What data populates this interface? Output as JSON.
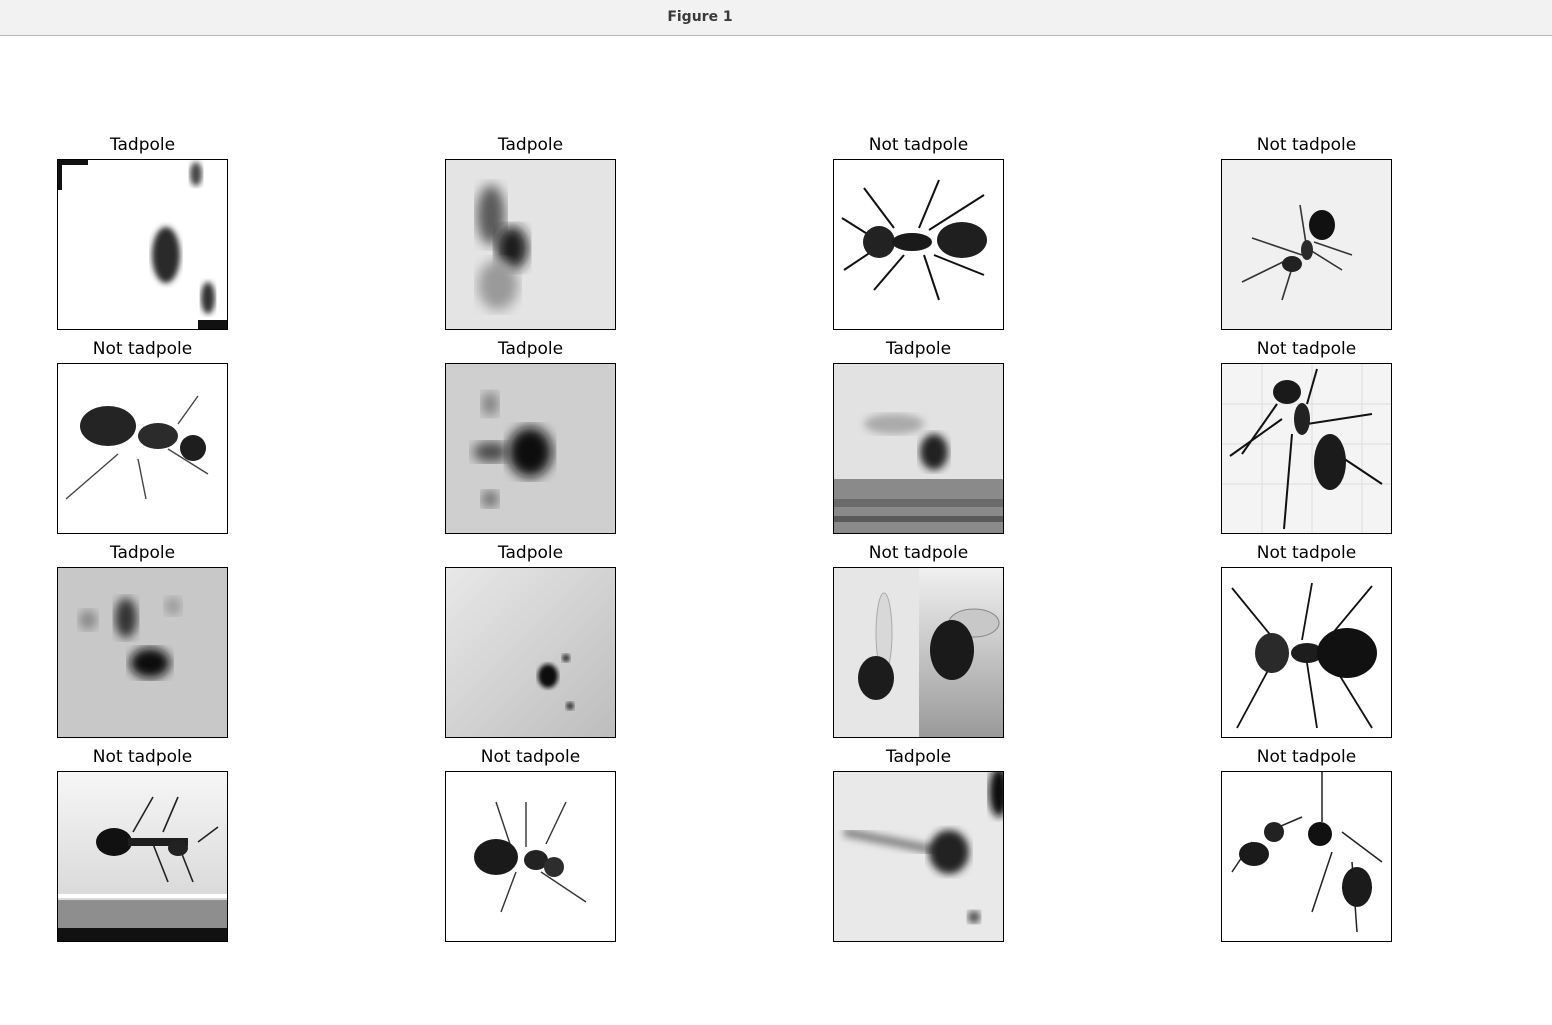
{
  "window": {
    "title": "Figure 1"
  },
  "figure": {
    "panels": [
      {
        "label": "Tadpole",
        "content": "tadpole"
      },
      {
        "label": "Tadpole",
        "content": "tadpole"
      },
      {
        "label": "Not tadpole",
        "content": "ant"
      },
      {
        "label": "Not tadpole",
        "content": "ant"
      },
      {
        "label": "Not tadpole",
        "content": "ant"
      },
      {
        "label": "Tadpole",
        "content": "tadpole"
      },
      {
        "label": "Tadpole",
        "content": "tadpole"
      },
      {
        "label": "Not tadpole",
        "content": "ant"
      },
      {
        "label": "Tadpole",
        "content": "tadpole"
      },
      {
        "label": "Tadpole",
        "content": "tadpole"
      },
      {
        "label": "Not tadpole",
        "content": "fly"
      },
      {
        "label": "Not tadpole",
        "content": "ant"
      },
      {
        "label": "Not tadpole",
        "content": "ant"
      },
      {
        "label": "Not tadpole",
        "content": "ant"
      },
      {
        "label": "Tadpole",
        "content": "tadpole"
      },
      {
        "label": "Not tadpole",
        "content": "ant"
      }
    ]
  }
}
